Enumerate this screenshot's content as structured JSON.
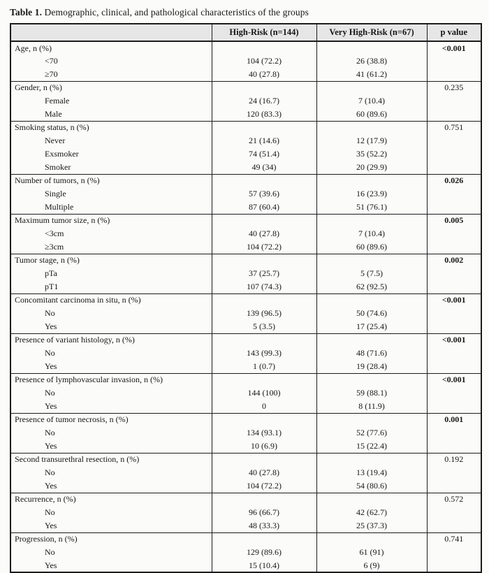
{
  "page": {
    "title_prefix": "Table 1.",
    "title_rest": " Demographic, clinical, and pathological characteristics of the groups"
  },
  "colors": {
    "header_bg": "#e6e6e6",
    "border": "#1c1c1c",
    "text": "#161616",
    "page_bg": "#fbfbfa"
  },
  "table": {
    "columns": [
      "",
      "High-Risk (n=144)",
      "Very High-Risk (n=67)",
      "p value"
    ],
    "sections": [
      {
        "label": "Age, n (%)",
        "p_value": "<0.001",
        "p_bold": true,
        "rows": [
          {
            "label": "<70",
            "high_risk": "104 (72.2)",
            "very_high_risk": "26 (38.8)"
          },
          {
            "label": "≥70",
            "high_risk": "40 (27.8)",
            "very_high_risk": "41 (61.2)"
          }
        ]
      },
      {
        "label": "Gender, n (%)",
        "p_value": "0.235",
        "p_bold": false,
        "rows": [
          {
            "label": "Female",
            "high_risk": "24 (16.7)",
            "very_high_risk": "7 (10.4)"
          },
          {
            "label": "Male",
            "high_risk": "120 (83.3)",
            "very_high_risk": "60 (89.6)"
          }
        ]
      },
      {
        "label": "Smoking status, n (%)",
        "p_value": "0.751",
        "p_bold": false,
        "rows": [
          {
            "label": "Never",
            "high_risk": "21 (14.6)",
            "very_high_risk": "12 (17.9)"
          },
          {
            "label": "Exsmoker",
            "high_risk": "74 (51.4)",
            "very_high_risk": "35 (52.2)"
          },
          {
            "label": "Smoker",
            "high_risk": "49 (34)",
            "very_high_risk": "20 (29.9)"
          }
        ]
      },
      {
        "label": "Number of tumors, n (%)",
        "p_value": "0.026",
        "p_bold": true,
        "rows": [
          {
            "label": "Single",
            "high_risk": "57 (39.6)",
            "very_high_risk": "16 (23.9)"
          },
          {
            "label": "Multiple",
            "high_risk": "87 (60.4)",
            "very_high_risk": "51 (76.1)"
          }
        ]
      },
      {
        "label": "Maximum tumor size, n (%)",
        "p_value": "0.005",
        "p_bold": true,
        "rows": [
          {
            "label": "<3cm",
            "high_risk": "40 (27.8)",
            "very_high_risk": "7 (10.4)"
          },
          {
            "label": "≥3cm",
            "high_risk": "104 (72.2)",
            "very_high_risk": "60 (89.6)"
          }
        ]
      },
      {
        "label": "Tumor stage, n (%)",
        "p_value": "0.002",
        "p_bold": true,
        "rows": [
          {
            "label": "pTa",
            "high_risk": "37 (25.7)",
            "very_high_risk": "5 (7.5)"
          },
          {
            "label": "pT1",
            "high_risk": "107 (74.3)",
            "very_high_risk": "62 (92.5)"
          }
        ]
      },
      {
        "label": "Concomitant carcinoma in situ, n (%)",
        "p_value": "<0.001",
        "p_bold": true,
        "rows": [
          {
            "label": "No",
            "high_risk": "139 (96.5)",
            "very_high_risk": "50 (74.6)"
          },
          {
            "label": "Yes",
            "high_risk": "5 (3.5)",
            "very_high_risk": "17 (25.4)"
          }
        ]
      },
      {
        "label": "Presence of variant histology, n (%)",
        "p_value": "<0.001",
        "p_bold": true,
        "rows": [
          {
            "label": "No",
            "high_risk": "143 (99.3)",
            "very_high_risk": "48 (71.6)"
          },
          {
            "label": "Yes",
            "high_risk": "1 (0.7)",
            "very_high_risk": "19 (28.4)"
          }
        ]
      },
      {
        "label": "Presence of lymphovascular invasion, n (%)",
        "p_value": "<0.001",
        "p_bold": true,
        "rows": [
          {
            "label": "No",
            "high_risk": "144 (100)",
            "very_high_risk": "59 (88.1)"
          },
          {
            "label": "Yes",
            "high_risk": "0",
            "very_high_risk": "8 (11.9)"
          }
        ]
      },
      {
        "label": "Presence of tumor necrosis, n (%)",
        "p_value": "0.001",
        "p_bold": true,
        "rows": [
          {
            "label": "No",
            "high_risk": "134 (93.1)",
            "very_high_risk": "52 (77.6)"
          },
          {
            "label": "Yes",
            "high_risk": "10 (6.9)",
            "very_high_risk": "15 (22.4)"
          }
        ]
      },
      {
        "label": "Second transurethral resection, n (%)",
        "p_value": "0.192",
        "p_bold": false,
        "rows": [
          {
            "label": "No",
            "high_risk": "40 (27.8)",
            "very_high_risk": "13 (19.4)"
          },
          {
            "label": "Yes",
            "high_risk": "104 (72.2)",
            "very_high_risk": "54 (80.6)"
          }
        ]
      },
      {
        "label": "Recurrence, n (%)",
        "p_value": "0.572",
        "p_bold": false,
        "rows": [
          {
            "label": "No",
            "high_risk": "96 (66.7)",
            "very_high_risk": "42 (62.7)"
          },
          {
            "label": "Yes",
            "high_risk": "48 (33.3)",
            "very_high_risk": "25 (37.3)"
          }
        ]
      },
      {
        "label": "Progression, n (%)",
        "p_value": "0.741",
        "p_bold": false,
        "rows": [
          {
            "label": "No",
            "high_risk": "129 (89.6)",
            "very_high_risk": "61 (91)"
          },
          {
            "label": "Yes",
            "high_risk": "15 (10.4)",
            "very_high_risk": "6 (9)"
          }
        ]
      }
    ]
  }
}
